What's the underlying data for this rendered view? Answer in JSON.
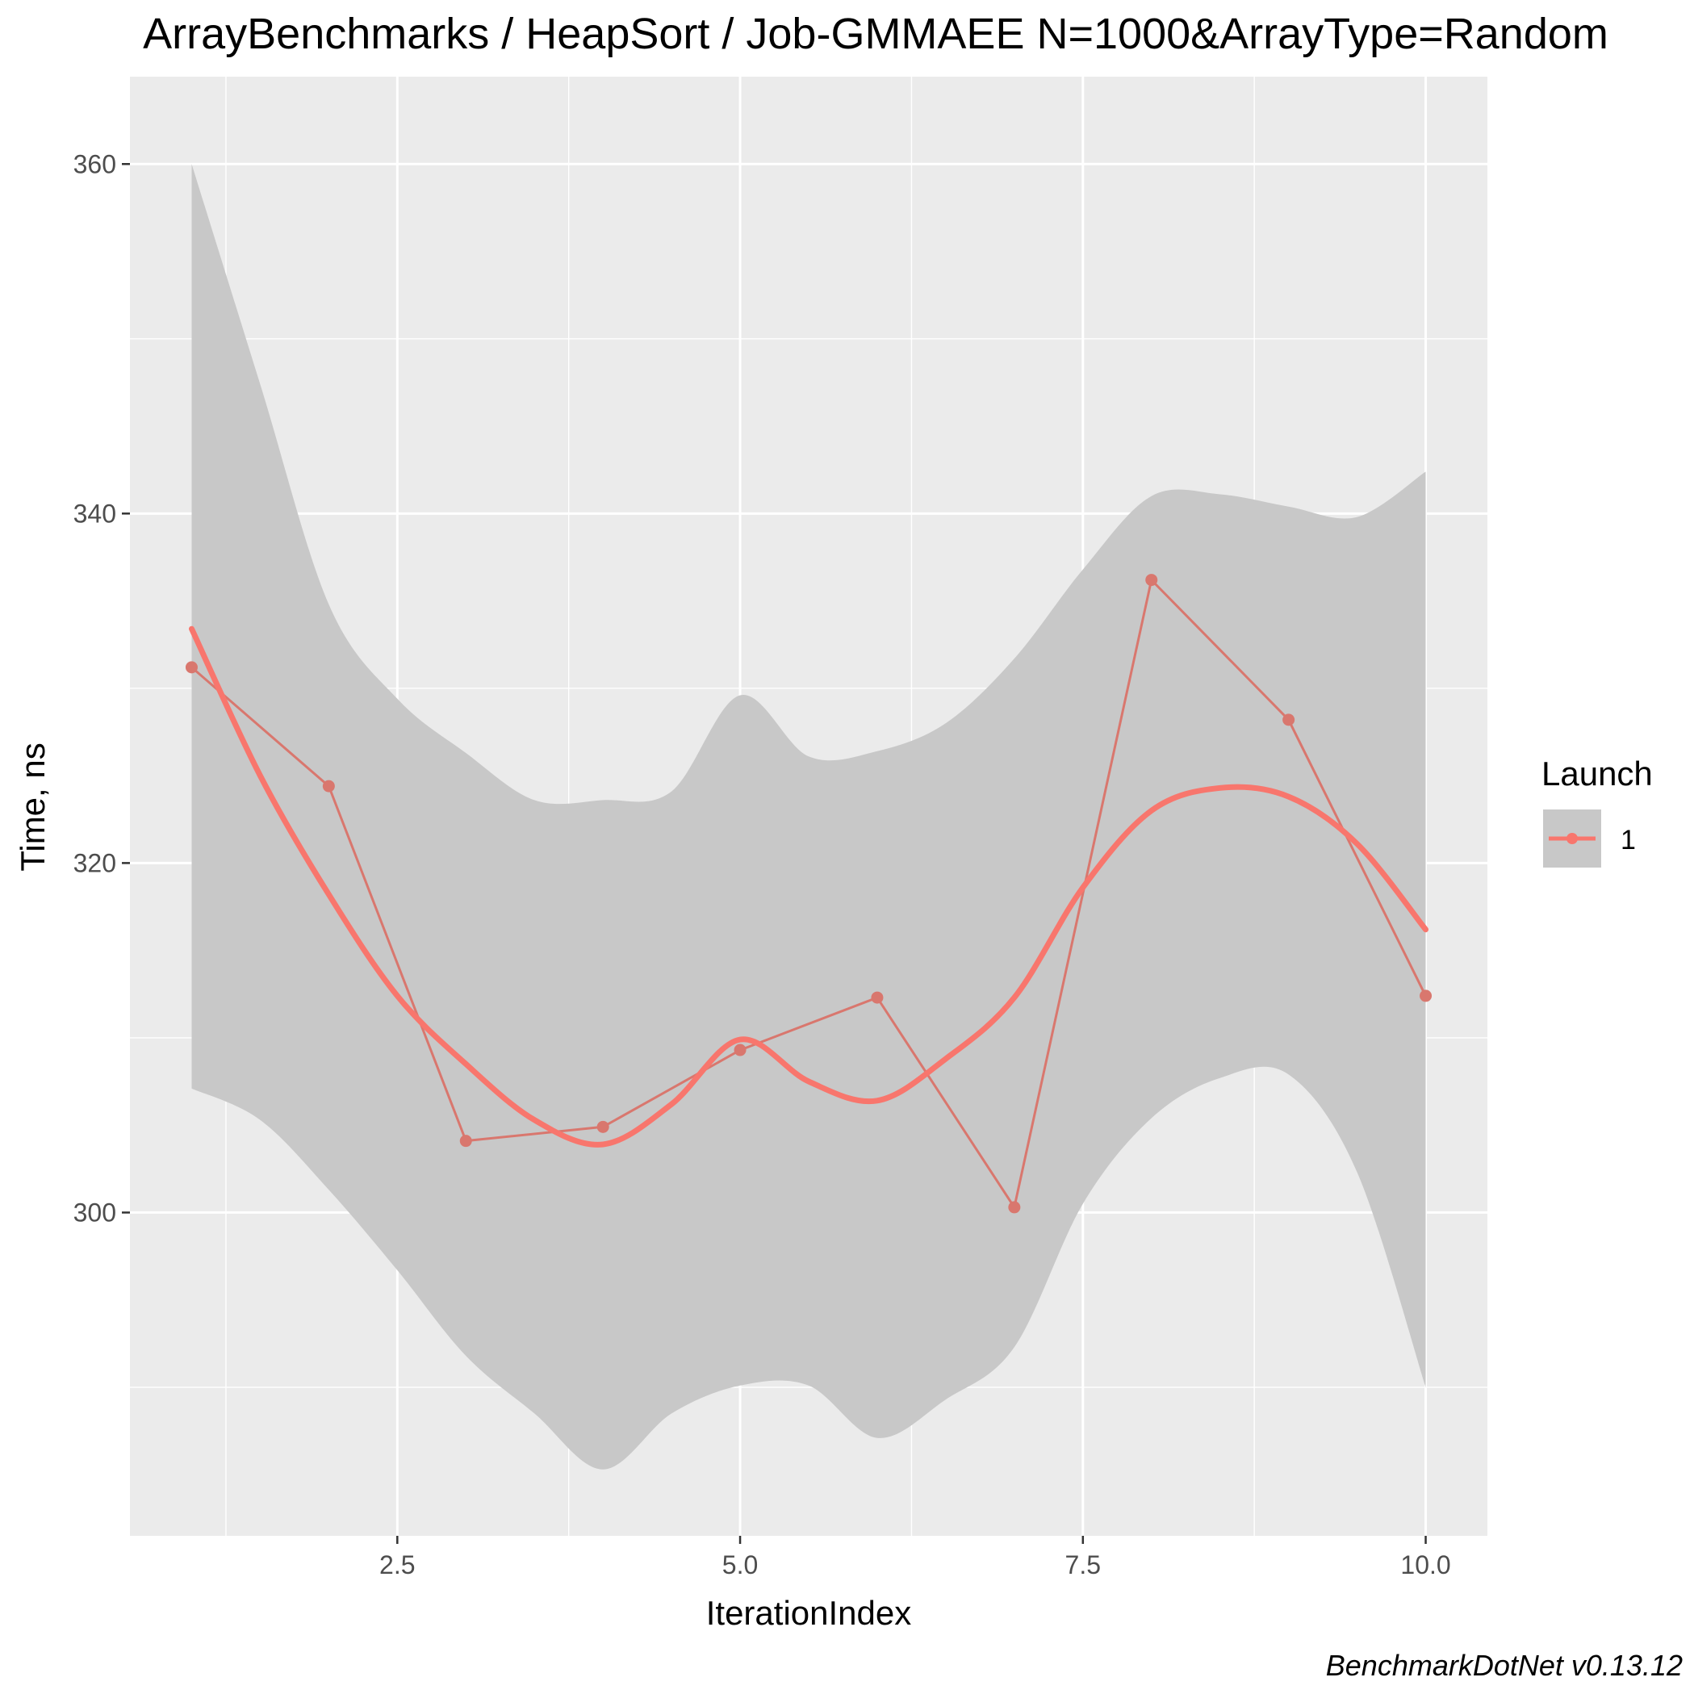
{
  "chart_data": {
    "type": "line",
    "title": "ArrayBenchmarks / HeapSort / Job-GMMAEE N=1000&ArrayType=Random",
    "xlabel": "IterationIndex",
    "ylabel": "Time, ns",
    "xlim": [
      0.55,
      10.45
    ],
    "ylim": [
      281.5,
      365
    ],
    "x_ticks": [
      2.5,
      5.0,
      7.5,
      10.0
    ],
    "x_tick_labels": [
      "2.5",
      "5.0",
      "7.5",
      "10.0"
    ],
    "y_ticks": [
      300,
      320,
      340,
      360
    ],
    "y_tick_labels": [
      "300",
      "320",
      "340",
      "360"
    ],
    "grid": true,
    "legend": {
      "title": "Launch",
      "position": "right",
      "entries": [
        "1"
      ]
    },
    "caption": "BenchmarkDotNet v0.13.12",
    "colors": {
      "series": "#f8766d",
      "raw_line": "#d9776e",
      "ribbon": "#c8c8c8",
      "panel": "#ebebeb",
      "grid": "#ffffff"
    },
    "series": [
      {
        "name": "1",
        "x": [
          1,
          2,
          3,
          4,
          5,
          6,
          7,
          8,
          9,
          10
        ],
        "y": [
          331.2,
          324.4,
          304.1,
          304.9,
          309.3,
          312.3,
          300.3,
          336.2,
          328.2,
          312.4
        ]
      }
    ],
    "smooth": {
      "x": [
        1.0,
        1.5,
        2.0,
        2.5,
        3.0,
        3.5,
        4.0,
        4.5,
        5.0,
        5.5,
        6.0,
        6.5,
        7.0,
        7.5,
        8.0,
        8.5,
        9.0,
        9.5,
        10.0
      ],
      "y": [
        333.4,
        325.0,
        318.2,
        312.4,
        308.5,
        305.3,
        303.9,
        306.2,
        309.9,
        307.5,
        306.4,
        308.8,
        312.3,
        318.6,
        323.0,
        324.3,
        323.8,
        321.1,
        316.2
      ],
      "lower": [
        307.1,
        305.3,
        301.3,
        296.7,
        291.8,
        288.5,
        285.3,
        288.5,
        290.1,
        290.1,
        287.1,
        289.3,
        292.3,
        300.5,
        305.4,
        307.7,
        307.9,
        302.3,
        290.0
      ],
      "upper": [
        360.0,
        347.4,
        334.8,
        329.4,
        326.3,
        323.6,
        323.6,
        324.1,
        329.6,
        326.1,
        326.4,
        328.0,
        331.7,
        336.8,
        341.0,
        341.1,
        340.4,
        339.8,
        342.4
      ]
    }
  }
}
